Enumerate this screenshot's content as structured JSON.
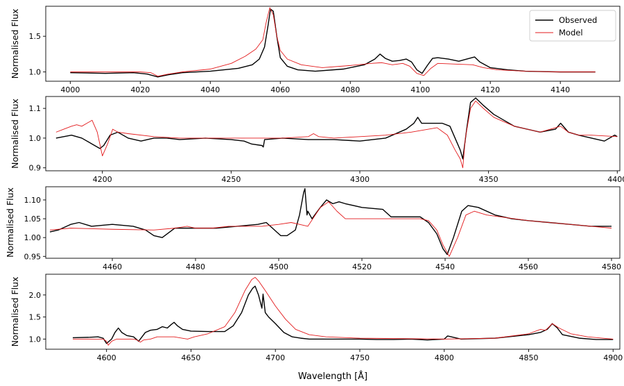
{
  "figure": {
    "xlabel": "Wavelength [Å]",
    "legend": {
      "placement": "upper-right",
      "entries": [
        {
          "label": "Observed",
          "color": "#000000"
        },
        {
          "label": "Model",
          "color": "#e31a1c"
        }
      ]
    }
  },
  "chart_data": [
    {
      "type": "line",
      "ylabel": "Normalised Flux",
      "xlim": [
        3993,
        4157
      ],
      "ylim": [
        0.87,
        1.92
      ],
      "xticks": [
        4000,
        4020,
        4040,
        4060,
        4080,
        4100,
        4120,
        4140
      ],
      "yticks": [
        1.0,
        1.5
      ],
      "ytick_decimals": 1,
      "legend": true,
      "series": [
        {
          "name": "Observed",
          "color": "#000000",
          "x": [
            4000,
            4010,
            4018,
            4022,
            4025,
            4028,
            4032,
            4040,
            4048,
            4052,
            4054,
            4055.5,
            4056.5,
            4057.2,
            4058,
            4059,
            4060,
            4062,
            4065,
            4070,
            4078,
            4084,
            4087,
            4088.5,
            4090,
            4092,
            4094,
            4096,
            4097.5,
            4099,
            4100.5,
            4102,
            4103.5,
            4105,
            4108,
            4111,
            4114,
            4115.5,
            4117,
            4120,
            4125,
            4130,
            4140,
            4150
          ],
          "y": [
            0.99,
            0.98,
            0.99,
            0.97,
            0.93,
            0.96,
            0.99,
            1.01,
            1.05,
            1.1,
            1.18,
            1.35,
            1.65,
            1.88,
            1.85,
            1.5,
            1.2,
            1.08,
            1.03,
            1.01,
            1.04,
            1.1,
            1.18,
            1.25,
            1.19,
            1.15,
            1.16,
            1.18,
            1.14,
            1.03,
            0.98,
            1.09,
            1.19,
            1.2,
            1.18,
            1.15,
            1.19,
            1.21,
            1.14,
            1.06,
            1.03,
            1.01,
            1.0,
            1.0
          ]
        },
        {
          "name": "Model",
          "color": "#e31a1c",
          "x": [
            4000,
            4010,
            4020,
            4023,
            4025,
            4028,
            4032,
            4040,
            4046,
            4050,
            4053,
            4055,
            4056,
            4057,
            4058,
            4059,
            4060,
            4062,
            4066,
            4072,
            4080,
            4086,
            4089,
            4092,
            4095,
            4097,
            4099,
            4101,
            4103,
            4105,
            4110,
            4115,
            4118,
            4122,
            4130,
            4140,
            4150
          ],
          "y": [
            1.0,
            1.0,
            1.0,
            0.99,
            0.94,
            0.97,
            1.0,
            1.04,
            1.12,
            1.22,
            1.32,
            1.45,
            1.7,
            1.9,
            1.8,
            1.5,
            1.3,
            1.18,
            1.1,
            1.06,
            1.09,
            1.12,
            1.13,
            1.1,
            1.12,
            1.08,
            0.98,
            0.95,
            1.05,
            1.12,
            1.11,
            1.1,
            1.06,
            1.03,
            1.01,
            1.0,
            1.0
          ]
        }
      ]
    },
    {
      "type": "line",
      "ylabel": "Normalised Flux",
      "xlim": [
        4178,
        4401
      ],
      "ylim": [
        0.89,
        1.14
      ],
      "xticks": [
        4200,
        4250,
        4300,
        4350,
        4400
      ],
      "yticks": [
        0.9,
        1.0,
        1.1
      ],
      "ytick_decimals": 1,
      "legend": false,
      "series": [
        {
          "name": "Observed",
          "color": "#000000",
          "x": [
            4182,
            4188,
            4192,
            4196,
            4198,
            4199,
            4200.5,
            4203,
            4206,
            4210,
            4215,
            4220,
            4225,
            4230,
            4240,
            4250,
            4255,
            4258,
            4262,
            4262.5,
            4263,
            4270,
            4280,
            4290,
            4300,
            4310,
            4318,
            4321,
            4322.5,
            4324,
            4328,
            4332,
            4335,
            4337,
            4339,
            4340,
            4341.5,
            4343,
            4345,
            4348,
            4352,
            4360,
            4370,
            4376,
            4378,
            4381,
            4385,
            4390,
            4395,
            4399,
            4400
          ],
          "y": [
            1.0,
            1.01,
            1.0,
            0.98,
            0.97,
            0.965,
            0.975,
            1.01,
            1.02,
            1.0,
            0.99,
            1.0,
            1.0,
            0.995,
            1.0,
            0.995,
            0.99,
            0.98,
            0.975,
            0.97,
            0.995,
            1.0,
            0.995,
            0.995,
            0.99,
            1.0,
            1.03,
            1.05,
            1.07,
            1.05,
            1.05,
            1.05,
            1.04,
            1.0,
            0.96,
            0.93,
            1.03,
            1.12,
            1.135,
            1.11,
            1.08,
            1.04,
            1.02,
            1.03,
            1.05,
            1.02,
            1.01,
            1.0,
            0.99,
            1.01,
            1.005
          ]
        },
        {
          "name": "Model",
          "color": "#e31a1c",
          "x": [
            4182,
            4185,
            4188,
            4190,
            4192,
            4194,
            4196,
            4198,
            4200,
            4202,
            4204,
            4206,
            4210,
            4220,
            4230,
            4240,
            4250,
            4260,
            4270,
            4280,
            4282,
            4284,
            4290,
            4300,
            4310,
            4320,
            4330,
            4334,
            4337,
            4339,
            4340,
            4341,
            4343,
            4345,
            4348,
            4352,
            4360,
            4370,
            4378,
            4381,
            4385,
            4390,
            4400
          ],
          "y": [
            1.02,
            1.03,
            1.04,
            1.045,
            1.04,
            1.05,
            1.06,
            1.02,
            0.94,
            0.98,
            1.03,
            1.02,
            1.015,
            1.005,
            1.0,
            1.0,
            1.0,
            1.0,
            1.0,
            1.005,
            1.015,
            1.005,
            1.0,
            1.005,
            1.01,
            1.02,
            1.035,
            1.01,
            0.96,
            0.93,
            0.9,
            1.0,
            1.1,
            1.125,
            1.1,
            1.07,
            1.04,
            1.02,
            1.04,
            1.02,
            1.01,
            1.01,
            1.005
          ]
        }
      ]
    },
    {
      "type": "line",
      "ylabel": "Normalised Flux",
      "xlim": [
        4444,
        4582
      ],
      "ylim": [
        0.945,
        1.135
      ],
      "xticks": [
        4460,
        4480,
        4500,
        4520,
        4540,
        4560,
        4580
      ],
      "yticks": [
        0.95,
        1.0,
        1.05,
        1.1
      ],
      "ytick_decimals": 2,
      "legend": false,
      "series": [
        {
          "name": "Observed",
          "color": "#000000",
          "x": [
            4445,
            4447,
            4450,
            4452,
            4455,
            4460,
            4465,
            4468,
            4470,
            4472,
            4475,
            4480,
            4485,
            4490,
            4495,
            4497,
            4499,
            4500.5,
            4502,
            4504,
            4505,
            4506,
            4506.3,
            4506.8,
            4507,
            4508,
            4510,
            4511.5,
            4513,
            4514.5,
            4516,
            4520,
            4525,
            4527,
            4530,
            4534,
            4536,
            4538,
            4539.5,
            4540.5,
            4542,
            4544,
            4545.5,
            4548,
            4552,
            4556,
            4560,
            4565,
            4570,
            4575,
            4580
          ],
          "y": [
            1.015,
            1.02,
            1.035,
            1.04,
            1.03,
            1.035,
            1.03,
            1.02,
            1.005,
            1.0,
            1.025,
            1.025,
            1.025,
            1.03,
            1.035,
            1.04,
            1.02,
            1.005,
            1.005,
            1.02,
            1.06,
            1.12,
            1.13,
            1.06,
            1.07,
            1.05,
            1.08,
            1.1,
            1.09,
            1.095,
            1.09,
            1.08,
            1.075,
            1.055,
            1.055,
            1.055,
            1.04,
            1.01,
            0.97,
            0.955,
            1.0,
            1.07,
            1.085,
            1.08,
            1.06,
            1.05,
            1.045,
            1.04,
            1.035,
            1.03,
            1.03
          ]
        },
        {
          "name": "Model",
          "color": "#e31a1c",
          "x": [
            4445,
            4450,
            4460,
            4470,
            4475,
            4478,
            4480,
            4484,
            4488,
            4492,
            4496,
            4500,
            4503,
            4505,
            4507,
            4510,
            4512,
            4514,
            4516,
            4520,
            4526,
            4530,
            4534,
            4536,
            4538,
            4539.5,
            4541,
            4543,
            4545,
            4547,
            4550,
            4560,
            4570,
            4580
          ],
          "y": [
            1.02,
            1.025,
            1.022,
            1.02,
            1.025,
            1.03,
            1.025,
            1.025,
            1.03,
            1.03,
            1.03,
            1.035,
            1.04,
            1.035,
            1.03,
            1.08,
            1.095,
            1.07,
            1.05,
            1.05,
            1.05,
            1.05,
            1.05,
            1.045,
            1.02,
            0.98,
            0.95,
            1.0,
            1.06,
            1.07,
            1.06,
            1.045,
            1.035,
            1.025
          ]
        }
      ]
    },
    {
      "type": "line",
      "ylabel": "Normalised Flux",
      "xlim": [
        4564,
        4904
      ],
      "ylim": [
        0.77,
        2.47
      ],
      "xticks": [
        4600,
        4650,
        4700,
        4750,
        4800,
        4850,
        4900
      ],
      "yticks": [
        1.0,
        1.5,
        2.0
      ],
      "ytick_decimals": 1,
      "legend": false,
      "series": [
        {
          "name": "Observed",
          "color": "#000000",
          "x": [
            4580,
            4590,
            4595,
            4598,
            4600,
            4603,
            4605,
            4607,
            4609,
            4612,
            4616,
            4619,
            4621,
            4623,
            4626,
            4630,
            4633,
            4636,
            4638,
            4640,
            4642,
            4645,
            4650,
            4660,
            4670,
            4675,
            4680,
            4684,
            4686.5,
            4688,
            4690,
            4692,
            4692.7,
            4694,
            4696,
            4700,
            4705,
            4710,
            4715,
            4720,
            4730,
            4740,
            4750,
            4760,
            4770,
            4780,
            4790,
            4800,
            4802,
            4810,
            4830,
            4850,
            4857,
            4861,
            4864,
            4867,
            4870,
            4880,
            4890,
            4900
          ],
          "y": [
            1.03,
            1.04,
            1.05,
            1.02,
            0.9,
            1.0,
            1.15,
            1.25,
            1.15,
            1.08,
            1.05,
            0.95,
            1.05,
            1.15,
            1.2,
            1.22,
            1.28,
            1.25,
            1.32,
            1.38,
            1.3,
            1.22,
            1.18,
            1.17,
            1.17,
            1.3,
            1.6,
            2.0,
            2.15,
            2.2,
            2.0,
            1.7,
            2.02,
            1.6,
            1.5,
            1.35,
            1.15,
            1.05,
            1.02,
            1.0,
            1.0,
            1.0,
            1.0,
            0.99,
            0.99,
            1.0,
            0.98,
            1.0,
            1.07,
            1.0,
            1.02,
            1.1,
            1.15,
            1.22,
            1.35,
            1.25,
            1.1,
            1.02,
            0.99,
            0.99
          ]
        },
        {
          "name": "Model",
          "color": "#e31a1c",
          "x": [
            4580,
            4590,
            4598,
            4600,
            4601,
            4603,
            4606,
            4612,
            4616,
            4618,
            4620,
            4622,
            4626,
            4630,
            4640,
            4648,
            4652,
            4660,
            4670,
            4676,
            4682,
            4686,
            4688,
            4690,
            4694,
            4700,
            4706,
            4712,
            4720,
            4730,
            4750,
            4800,
            4830,
            4850,
            4857,
            4860,
            4864,
            4868,
            4875,
            4885,
            4900
          ],
          "y": [
            1.0,
            1.0,
            1.0,
            0.95,
            0.86,
            0.95,
            1.0,
            1.0,
            1.0,
            0.98,
            0.93,
            0.98,
            1.0,
            1.05,
            1.05,
            1.0,
            1.05,
            1.12,
            1.28,
            1.6,
            2.1,
            2.35,
            2.4,
            2.32,
            2.1,
            1.75,
            1.45,
            1.22,
            1.1,
            1.05,
            1.02,
            1.0,
            1.02,
            1.12,
            1.22,
            1.2,
            1.35,
            1.25,
            1.12,
            1.05,
            1.0
          ]
        }
      ]
    }
  ]
}
